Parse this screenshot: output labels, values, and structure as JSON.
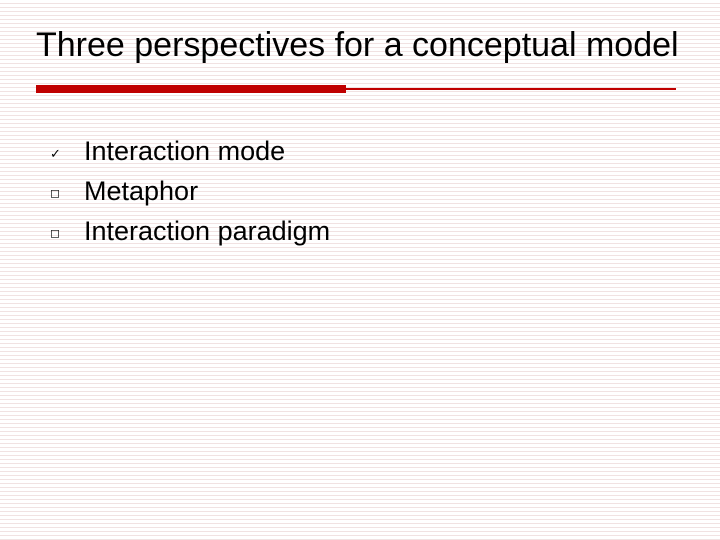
{
  "slide": {
    "title": "Three perspectives for a conceptual model",
    "rule_color": "#c00000",
    "background_color": "#ffffff",
    "hline_color": "rgba(200,140,140,0.25)",
    "title_fontsize": 34,
    "body_fontsize": 27,
    "bullets": [
      {
        "marker": "check",
        "glyph": "✓",
        "text": "Interaction mode"
      },
      {
        "marker": "square",
        "glyph": "◻",
        "text": "Metaphor"
      },
      {
        "marker": "square",
        "glyph": "◻",
        "text": "Interaction paradigm"
      }
    ]
  }
}
